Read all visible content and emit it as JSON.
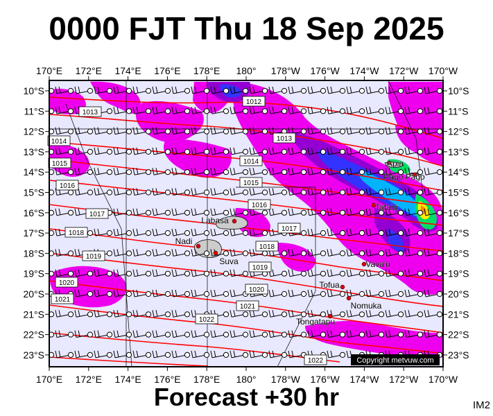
{
  "header": {
    "title": "0000 FJT Thu 18 Sep 2025"
  },
  "footer": {
    "forecast_label": "Forecast +30 hr",
    "model_code": "IM2"
  },
  "map": {
    "lon_labels": [
      "170°E",
      "172°E",
      "174°E",
      "176°E",
      "178°E",
      "180°",
      "178°W",
      "176°W",
      "174°W",
      "172°W",
      "170°W"
    ],
    "lat_labels": [
      "10°S",
      "11°S",
      "12°S",
      "13°S",
      "14°S",
      "15°S",
      "16°S",
      "17°S",
      "18°S",
      "19°S",
      "20°S",
      "21°S",
      "22°S",
      "23°S"
    ],
    "isobar_labels": [
      "1012",
      "1013",
      "1013",
      "1014",
      "1014",
      "1015",
      "1015",
      "1016",
      "1016",
      "1017",
      "1017",
      "1018",
      "1018",
      "1019",
      "1019",
      "1020",
      "1020",
      "1021",
      "1021",
      "1022",
      "1022"
    ],
    "places": [
      "Apia",
      "Pago Pago",
      "Tafahi",
      "Labasa",
      "Nadi",
      "Suva",
      "Vava'u",
      "Tofua",
      "Nomuka",
      "Tongatapu"
    ],
    "copyright": "Copyright metvuw.com",
    "colors": {
      "background": "#e8e8ff",
      "precip_light": "#ee00ee",
      "isobar": "#ff0000",
      "land": "#cccccc"
    }
  }
}
